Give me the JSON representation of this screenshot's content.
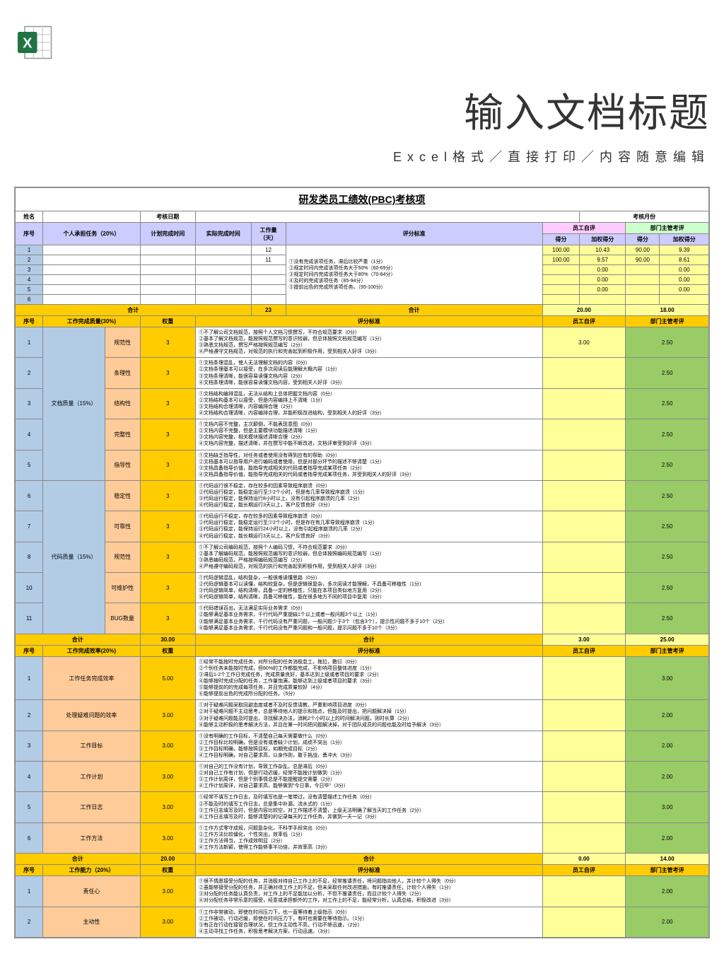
{
  "header": {
    "main_title": "输入文档标题",
    "subtitle": "Excel格式／直接打印／内容随意编辑"
  },
  "sheet": {
    "title": "研发类员工绩效(PBC)考核项",
    "info_labels": {
      "name": "姓名",
      "date": "考核日期",
      "month": "考核月份"
    },
    "cols": {
      "seq": "序号",
      "task": "个人承担任务（20%）",
      "plan_time": "计划完成时间",
      "actual_time": "实际完成时间",
      "workload": "工作量（天）",
      "criteria": "评分标准",
      "self": "员工自评",
      "mgr": "部门主管考评",
      "score": "得分",
      "weighted": "加权得分"
    },
    "section1": {
      "rows": [
        {
          "n": "1",
          "wl": "12",
          "s": "100.00",
          "sw": "10.43",
          "m": "90.00",
          "mw": "9.39"
        },
        {
          "n": "2",
          "wl": "11",
          "s": "100.00",
          "sw": "9.57",
          "m": "90.00",
          "mw": "8.61"
        },
        {
          "n": "3",
          "wl": "",
          "s": "",
          "sw": "0.00",
          "m": "",
          "mw": "0.00"
        },
        {
          "n": "4",
          "wl": "",
          "s": "",
          "sw": "0.00",
          "m": "",
          "mw": "0.00"
        },
        {
          "n": "5",
          "wl": "",
          "s": "",
          "sw": "0.00",
          "m": "",
          "mw": "0.00"
        },
        {
          "n": "6",
          "wl": "",
          "s": "",
          "sw": "",
          "m": "",
          "mw": ""
        }
      ],
      "criteria": "①没有完成该项任务，滞后比较严重（1分）\n②规定时间内完成该项任务大于50%（60-69分）\n③规定时间内完成该项任务大于80%（70-84分）\n④及时的完成该项任务（85-94分）\n⑤提前出色的完成所该项任务。（95-100分）",
      "total": {
        "label": "合计",
        "wl": "23",
        "self": "20.00",
        "mgr": "18.00"
      }
    },
    "section2": {
      "header": {
        "seq": "序号",
        "name": "工作完成质量(30%)",
        "weight": "权重",
        "criteria": "评分标准",
        "self": "员工自评",
        "mgr": "部门主管考评"
      },
      "group1": "文档质量（15%）",
      "group2": "代码质量（15%）",
      "rows": [
        {
          "n": "1",
          "item": "规范性",
          "w": "3",
          "c": "①不了解公司文档规范，按照个人文档习惯撰写，不符合规范要求（0分）\n②基本了解文档规范，能按照规范撰写的意识较弱，但总体按照文档规范编写（1分）\n③熟悉文档规范，撰写严格按照规范编写（2分）\n④严格遵守文档规范，对规范的执行和完善起到积极作用，受到相关人好评（3分）",
          "s": "3.00",
          "m": "2.50"
        },
        {
          "n": "2",
          "item": "条理性",
          "w": "3",
          "c": "①文档条理混乱，使人无法理解文档的内容（0分）\n②文档条理基本可以接受，在多次阅读后能理解大概内容（1分）\n③文档条理清晰，能很容易读懂文档内容（2分）\n④文档条理清晰，能很容易读懂文档内容，受到相关人好评（3分）",
          "s": "",
          "m": "2.50"
        },
        {
          "n": "3",
          "item": "结构性",
          "w": "3",
          "c": "①文档结构编排混乱，无法从结构上总体把握文档内容（0分）\n②文档结构基本可以接受，但是内容编排上不清晰（1分）\n③文档结构合理清晰，内容编排合理（2分）\n④文档结构合理清晰，内容编排合理，并能积极改进结构，受到相关人的好评（3分）",
          "s": "",
          "m": "2.50"
        },
        {
          "n": "4",
          "item": "完整性",
          "w": "3",
          "c": "①文档内容不完整，主次颠倒，不能表现意图（0分）\n②文档内容不完整，但是主要模块功能描述清晰（1分）\n③文档内容完整，相关模块描述清晰合理（2分）\n④文档内容完整，描述清晰，并在撰写中能不断改进，文档评审受到好评（3分）",
          "s": "",
          "m": "2.50"
        },
        {
          "n": "5",
          "item": "指导性",
          "w": "3",
          "c": "①文档缺乏指导性，对任务或者使用没有得到应有的帮助（0分）\n②文档基本可以指导用户进行编码或者使用，但是对部分环节的描述不够清楚（1分）\n③文档具备指导价值，能指导完成相关的代码或者指导完成某项任务（2分）\n④文档具备指导价值，能指导完成相关的代码或者指导完成某项任务，并受到相关人的好评（3分）",
          "s": "",
          "m": "2.50"
        },
        {
          "n": "6",
          "item": "稳定性",
          "w": "3",
          "c": "①代码运行很不稳定，存在较多的因素导致程序崩溃（0分）\n②代码运行稳定，能稳定运行至少2个小时，但是有几率导致程序崩溃（1分）\n③代码运行稳定，能保持运行8小时以上，没有引起程序崩溃的几率（2分）\n④代码运行稳定，能长期运行3天以上，客户反馈良好（3分）",
          "s": "",
          "m": "2.50"
        },
        {
          "n": "7",
          "item": "可靠性",
          "w": "3",
          "c": "①代码运行不稳定，存在较多的因素导致程序崩溃（0分）\n②代码运行稳定，能稳定运行至少2个小时，但是存在有几率导致程序崩溃（1分）\n③代码运行稳定，能保持运行24小时以上，没有引起程序崩溃的几率（2分）\n④代码运行稳定，能长期运行3天以上，客户反馈良好（3分）",
          "s": "",
          "m": "2.50"
        },
        {
          "n": "8",
          "item": "规范性",
          "w": "3",
          "c": "①不了解公司编码规范，按照个人编码习惯，不符合规范要求（0分）\n②基本了解编码规范，能按照规范编写的意识较弱，但总体按照编码规范编写（1分）\n③熟悉编码规范，严格按照编码规范编写（2分）\n④严格遵守编码规范，对规范的执行和完善起到积极作用，受到相关人好评（3分）",
          "s": "",
          "m": "2.50"
        },
        {
          "n": "10",
          "item": "可维护性",
          "w": "3",
          "c": "①代码逻辑混乱，结构复杂，一般很难读懂思路（0分）\n②代码逻辑基本可以读懂，结构较复杂，但是逻辑很复杂，多次阅读才能理解，不具备可移植性（1分）\n③代码逻辑简单，结构清晰，具备一定的移植性，只能在本项目类似地方复用（2分）\n④代码逻辑简单，结构清晰，具备可移植性，能在很多地方不同的项目中复用（3分）",
          "s": "",
          "m": "2.50"
        },
        {
          "n": "11",
          "item": "BUG数量",
          "w": "3",
          "c": "①代码错误百出，无法满足实际业务需求（0分）\n②能够满足基本业务需求，千行代码严重提缺1个以上或者一般问题3个以上（1分）\n③能够满足基本业务需求，千行代码没有严重问题，一般问题少于3个（包含3个），提示性问题不多于10个（2分）\n④能够满足基本业务需求，千行代码没有严重问题和一般问题，提示问题不多于10个（3分）",
          "s": "",
          "m": "2.50"
        },
        {
          "total": true,
          "label": "合计",
          "w": "30.00",
          "s": "3.00",
          "m": "25.00"
        }
      ]
    },
    "section3": {
      "header": {
        "seq": "序号",
        "name": "工作完成效率(20%)",
        "weight": "权重",
        "criteria": "评分标准",
        "self": "员工自评",
        "mgr": "部门主管考评"
      },
      "rows": [
        {
          "n": "1",
          "item": "工作任务完成效率",
          "w": "5.00",
          "c": "①经常不能按时完成任务，对所分配的任务消极怠工，拖拉，敷衍（0分）\n②个别任务未能按时完成，但80%的工作都能完成，不影响项目整体进度（1分）\n③滞后1-2个工作日完成任务，完成质量良好，基本达到上级或者项目的要求（2分）\n④能够按时完成分配的任务，工作量饱满，能够达到上级或者项目的要求（3分）\n⑤能够提前的的完成每项任务，并且完成质量较好（4分）\n⑥能够提前出色的完成所分配的任务。（5分）",
          "s": "",
          "m": "3.00"
        },
        {
          "n": "2",
          "item": "处理疑难问题的效率",
          "w": "3.00",
          "c": "①对于疑难问题采取回避态度或者不及时反馈请教，严重影响项目进度（0分）\n②对于疑难问题不主动思考，总是等待他人的提示和指点，但能及时提出，把问题解决掉（1分）\n③对于疑难问题能及时提出，寻找解决办法，消耗2个小时以上的时间解决问题，则时长算（2分）\n④能够主动积极的思考解决方法，并且在第一时间把问题解决掉，对于团队成员的问题也能及时给予解决（3分）",
          "s": "",
          "m": "2.00"
        },
        {
          "n": "3",
          "item": "工作目标",
          "w": "3.00",
          "c": "①没有明确的工作目标，不清楚自己每天需要做什么（0分）\n②工作目标比较明确，但是没有或者缺少计划，成绩不突出（1分）\n③工作目标明确，能够按照目标，如期完成目标（2分）\n④工作目标明确，对自己要求高，以身作则，敢于挑战，勇冲大（3分）",
          "s": "",
          "m": "2.00"
        },
        {
          "n": "4",
          "item": "工作计划",
          "w": "3.00",
          "c": "①对自己的工作没有计划，导致工作杂乱，总是滞后（0分）\n②对自己工作有计划，但是行动迟缓，经常不能按计划做到（1分）\n③工作计划周详，但是个别事情总是不能提醒提交需要（2分）\n④工作计划周详，对自己要求高，能够做到\"今日事，今日毕\"（3分）",
          "s": "",
          "m": "2.00"
        },
        {
          "n": "5",
          "item": "工作日志",
          "w": "3.00",
          "c": "①经常不填写工作日志，及时填写也是一笔带过，没有清楚描述工作任务（0分）\n②不能及时的填写工作日志，总是集中补漏，流水式的（1分）\n③工作日志填写及时，但是内容比较空，对工作描述不清楚，上级无法明确了解当天的工作任务（2分）\n④工作日志填写及时，能够清楚的的记录每天的工作任务，并做到一天一记（3分）",
          "s": "",
          "m": "3.00"
        },
        {
          "n": "6",
          "item": "工作方法",
          "w": "3.00",
          "c": "①工作方式零守成规，问题复杂化，不科学手段突出（0分）\n②工作方法比较僵化，个性突出，效率低（1分）\n③工作方法得当，工作成效明显（2分）\n④工作方法新颖，使得工作能够事半功倍，并效率高（3分）",
          "s": "",
          "m": "2.00"
        },
        {
          "total": true,
          "label": "合计",
          "w": "20.00",
          "s": "0.00",
          "m": "14.00"
        }
      ]
    },
    "section4": {
      "header": {
        "seq": "序号",
        "name": "工作能力（20%）",
        "weight": "权重",
        "criteria": "评分标准",
        "self": "员工自评",
        "mgr": "部门主管考评"
      },
      "rows": [
        {
          "n": "1",
          "item": "责任心",
          "w": "3.00",
          "c": "①很不情愿接受分配的任务，并消极对待自己工作上的不足，经常推诿责任，将问题指向他人，并计较个人得失（0分）\n②虽能够接受分配的任务，并正确对待工作上的不足，但未采取任何改进措施，有时推诿责任，计较个人得失（1分）\n③对分配的任务能认真负责，对工作上的不足能加以分析，不但不推诿责任，而且计较个人得失（2分）\n④对分配任务非常乐意的接受，经意或承担额外的工作，对工作上的不足，能经常分析，认真总结，积极改进（3分）",
          "s": "",
          "m": "2.00"
        },
        {
          "n": "2",
          "item": "主动性",
          "w": "3.00",
          "c": "①工作非常被动，即使在时间压力下，也一直等待着上级指示（0分）\n②工作被动，行动迟缓，即使在时间压力下，有时也需要在等待指示。（1分）\n③有正在行动在接管合理状况，但工作主动性不高，行动不够迅速，（2分）\n④主动寻找工作任务，积极思考解决方案，行动迅速。（3分）",
          "s": "",
          "m": "2.00"
        }
      ]
    }
  },
  "colors": {
    "lavender": "#ccccff",
    "orange": "#ffcc00",
    "yellow": "#ffff99",
    "green": "#99cc66",
    "peach": "#ffcc99",
    "lightblue": "#b3cce6",
    "pink": "#ffccff",
    "lightgreen": "#ccffcc"
  }
}
